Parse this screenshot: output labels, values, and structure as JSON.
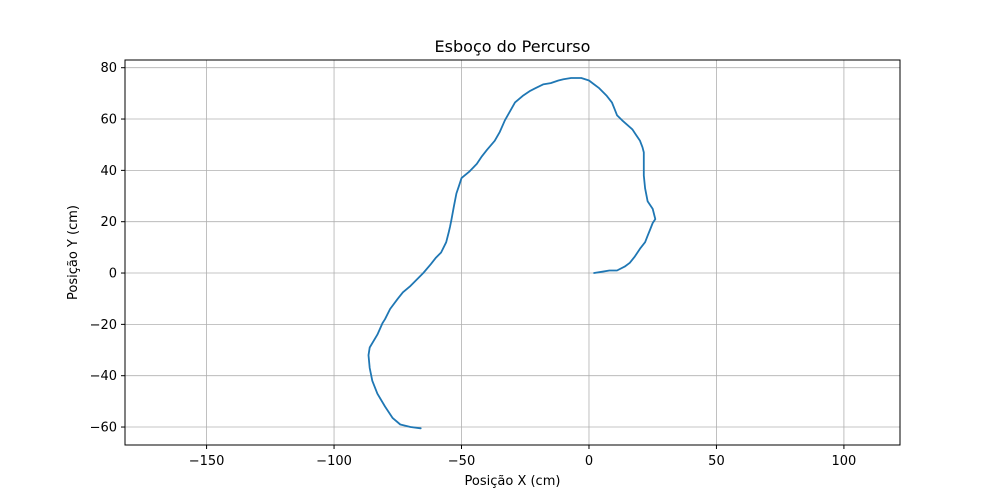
{
  "chart_data": {
    "type": "line",
    "title": "Esboço do Percurso",
    "xlabel": "Posição X (cm)",
    "ylabel": "Posição Y (cm)",
    "xlim": [
      -182,
      122
    ],
    "ylim": [
      -67,
      83
    ],
    "x_ticks": [
      -150,
      -100,
      -50,
      0,
      50,
      100
    ],
    "x_tick_labels": [
      "−150",
      "−100",
      "−50",
      "0",
      "50",
      "100"
    ],
    "y_ticks": [
      -60,
      -40,
      -20,
      0,
      20,
      40,
      60,
      80
    ],
    "y_tick_labels": [
      "−60",
      "−40",
      "−20",
      "0",
      "20",
      "40",
      "60",
      "80"
    ],
    "grid": true,
    "colors": {
      "line": "#1f77b4",
      "grid": "#b0b0b0"
    },
    "series": [
      {
        "x": [
          2,
          5,
          8,
          11,
          14,
          16,
          18,
          20,
          22,
          23,
          24,
          25,
          26,
          25,
          23,
          22,
          21.5,
          21.5,
          21.5,
          21,
          20,
          17,
          13,
          11,
          10,
          9,
          7,
          4,
          2,
          0,
          -3,
          -7,
          -10,
          -12,
          -15,
          -18,
          -21,
          -23,
          -26,
          -29,
          -31,
          -33,
          -35,
          -37,
          -40,
          -42,
          -44,
          -47,
          -50,
          -51,
          -52,
          -53,
          -54,
          -54.5,
          -55,
          -56,
          -58,
          -60,
          -62,
          -65,
          -68,
          -70,
          -73,
          -75,
          -78,
          -80,
          -81,
          -83,
          -86,
          -86.5,
          -86,
          -85,
          -83,
          -80,
          -77,
          -74,
          -70,
          -66
        ],
        "y": [
          0,
          0.5,
          1,
          1,
          2.5,
          4,
          6.5,
          9.5,
          12,
          14.5,
          17,
          19.5,
          21,
          25,
          28,
          33,
          38,
          43,
          47,
          49,
          51.5,
          56,
          59.5,
          61.5,
          64,
          66.5,
          69,
          72,
          73.5,
          75,
          76,
          76,
          75.5,
          75,
          74,
          73.5,
          72,
          71,
          69,
          66.5,
          63,
          59.5,
          55,
          51.5,
          48,
          45.5,
          42.5,
          39.5,
          37,
          34,
          31,
          26,
          20.5,
          18,
          16,
          12,
          8,
          6,
          3.5,
          0,
          -3,
          -5,
          -7.5,
          -10,
          -14,
          -18,
          -19.5,
          -24,
          -29,
          -32,
          -37,
          -42,
          -47,
          -52,
          -56.5,
          -59,
          -60,
          -60.5
        ]
      }
    ]
  }
}
